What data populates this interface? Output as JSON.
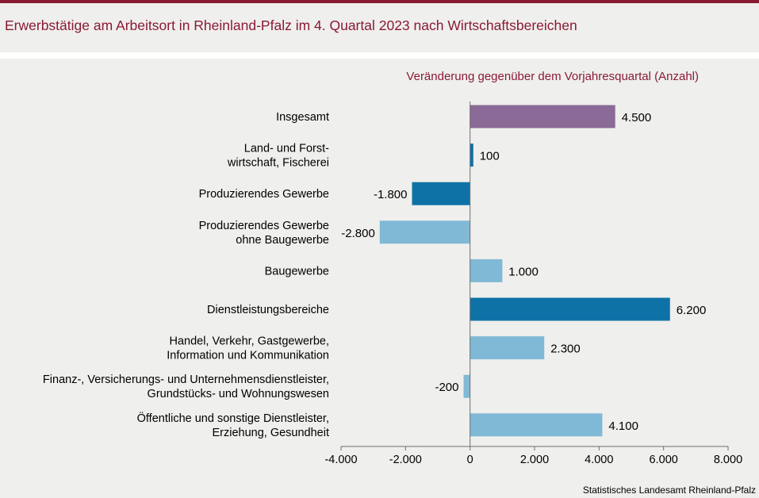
{
  "title": "Erwerbstätige am Arbeitsort in Rheinland-Pfalz im 4. Quartal 2023 nach Wirtschaftsbereichen",
  "source": "Statistisches Landesamt Rheinland-Pfalz",
  "colors": {
    "title": "#8a1a33",
    "total": "#8a6a96",
    "sector": "#0f72a6",
    "subsector": "#80b9d6"
  },
  "chart_data": {
    "type": "bar",
    "orientation": "horizontal",
    "subtitle": "Veränderung gegenüber dem Vorjahresquartal (Anzahl)",
    "categories": [
      [
        "Insgesamt"
      ],
      [
        "Land- und Forst-",
        "wirtschaft, Fischerei"
      ],
      [
        "Produzierendes Gewerbe"
      ],
      [
        "Produzierendes Gewerbe",
        "ohne Baugewerbe"
      ],
      [
        "Baugewerbe"
      ],
      [
        "Dienstleistungsbereiche"
      ],
      [
        "Handel, Verkehr, Gastgewerbe,",
        "Information und Kommunikation"
      ],
      [
        "Finanz-, Versicherungs- und Unternehmensdienstleister,",
        "Grundstücks- und Wohnungswesen"
      ],
      [
        "Öffentliche und sonstige Dienstleister,",
        "Erziehung, Gesundheit"
      ]
    ],
    "values": [
      4500,
      100,
      -1800,
      -2800,
      1000,
      6200,
      2300,
      -200,
      4100
    ],
    "value_labels": [
      "4.500",
      "100",
      "-1.800",
      "-2.800",
      "1.000",
      "6.200",
      "2.300",
      "-200",
      "4.100"
    ],
    "bar_levels": [
      "total",
      "sector",
      "sector",
      "subsector",
      "subsector",
      "sector",
      "subsector",
      "subsector",
      "subsector"
    ],
    "xlim": [
      -4000,
      8000
    ],
    "xticks": [
      -4000,
      -2000,
      0,
      2000,
      4000,
      6000,
      8000
    ],
    "xtick_labels": [
      "-4.000",
      "-2.000",
      "0",
      "2.000",
      "4.000",
      "6.000",
      "8.000"
    ],
    "grid": false,
    "legend": "none"
  }
}
